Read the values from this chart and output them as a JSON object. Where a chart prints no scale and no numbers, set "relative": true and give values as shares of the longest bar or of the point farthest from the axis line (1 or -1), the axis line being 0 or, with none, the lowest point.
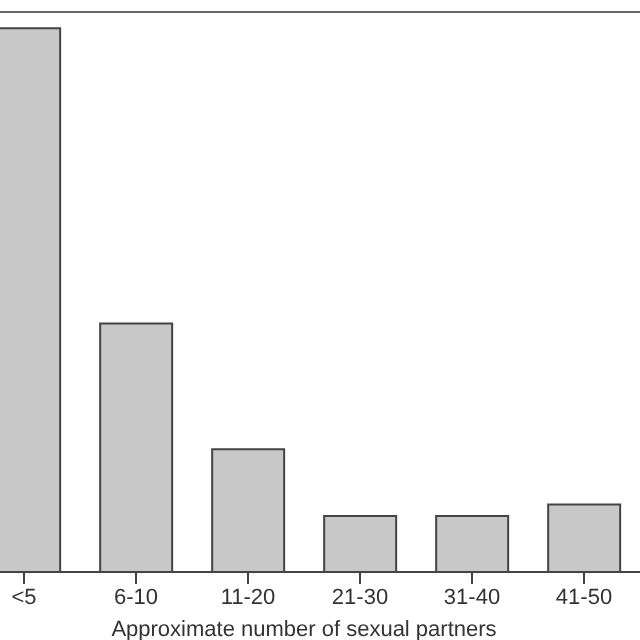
{
  "chart_data": {
    "type": "bar",
    "xlabel": "Approximate number of sexual partners",
    "categories": [
      "<5",
      "6-10",
      "11-20",
      "21-30",
      "31-40",
      "41-50"
    ],
    "values": [
      1,
      0.457,
      0.226,
      0.103,
      0.103,
      0.124
    ],
    "color": "#c8c8c8",
    "relative": true
  }
}
